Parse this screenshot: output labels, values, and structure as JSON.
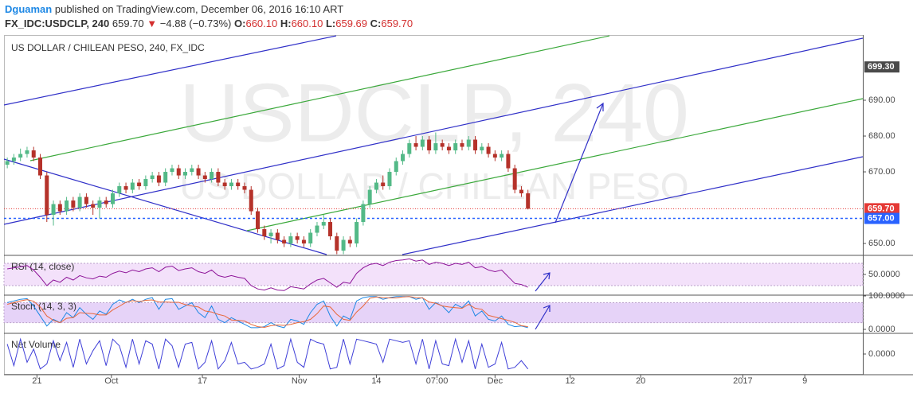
{
  "header": {
    "user": "Dguaman",
    "published": "published on TradingView.com, December 06, 2016 16:10 ART",
    "symbol": "FX_IDC:USDCLP, 240",
    "last": "659.70",
    "arrow": "▼",
    "change": "−4.88 (−0.73%)",
    "o_label": "O:",
    "o": "660.10",
    "h_label": "H:",
    "h": "660.10",
    "l_label": "L:",
    "l": "659.69",
    "c_label": "C:",
    "c": "659.70"
  },
  "chart_data": [
    {
      "type": "candlestick",
      "title": "US DOLLAR / CHILEAN PESO, 240, FX_IDC",
      "watermark": "USDCLP, 240",
      "watermark_sub": "US DOLLAR / CHILEAN PESO",
      "up_color": "#53b987",
      "down_color": "#b5322a",
      "open": [
        672,
        673,
        674,
        675,
        676,
        674,
        669,
        658,
        661,
        659,
        662,
        660,
        663,
        661,
        660,
        662,
        661,
        664,
        666,
        665,
        667,
        666,
        668,
        669,
        667,
        670,
        671,
        669,
        670,
        671,
        669,
        668,
        670,
        667,
        666,
        667,
        666,
        665,
        659,
        654,
        652,
        653,
        651,
        650,
        652,
        651,
        650,
        653,
        655,
        656,
        652,
        648,
        651,
        650,
        656,
        661,
        665,
        667,
        666,
        670,
        673,
        675,
        678,
        677,
        679,
        676,
        678,
        677,
        676,
        678,
        677,
        679,
        676,
        677,
        675,
        674,
        675,
        671,
        665,
        664
      ],
      "high": [
        674,
        675,
        676.5,
        677,
        677,
        675,
        670,
        662,
        662,
        663,
        663,
        664,
        664,
        662,
        663,
        663,
        665,
        667,
        667,
        668,
        668,
        669,
        670,
        670,
        671,
        672,
        672,
        671,
        672,
        672,
        670,
        671,
        671,
        668,
        668,
        668,
        667,
        666,
        660,
        655,
        654,
        654,
        652,
        653,
        653,
        652,
        654,
        656,
        658,
        657,
        653,
        652,
        652,
        657,
        662,
        666,
        668,
        669,
        671,
        674,
        676,
        679,
        680,
        680,
        680,
        681,
        679,
        678,
        679,
        679,
        680,
        680,
        678,
        678,
        676,
        676,
        676,
        672,
        666,
        665
      ],
      "low": [
        671,
        672,
        673,
        674,
        673,
        668,
        656,
        655,
        658,
        658,
        659,
        659,
        660,
        658,
        657,
        660,
        660,
        663,
        664,
        664,
        665,
        665,
        667,
        666,
        666,
        669,
        668,
        668,
        669,
        668,
        667,
        667,
        666,
        665,
        665,
        665,
        664,
        658,
        653,
        651,
        650,
        650,
        649,
        649,
        650,
        649,
        649,
        652,
        654,
        651,
        647,
        647,
        649,
        649,
        655,
        660,
        664,
        665,
        665,
        669,
        672,
        674,
        676,
        676,
        675,
        675,
        676,
        675,
        675,
        676,
        676,
        675,
        675,
        674,
        673,
        673,
        670,
        664,
        663,
        659.5
      ],
      "close": [
        673,
        674,
        675,
        676,
        674,
        669,
        658,
        661,
        659,
        662,
        660,
        663,
        661,
        660,
        662,
        661,
        664,
        666,
        665,
        667,
        666,
        668,
        669,
        667,
        670,
        671,
        669,
        670,
        671,
        669,
        668,
        670,
        667,
        666,
        667,
        666,
        665,
        659,
        654,
        652,
        653,
        651,
        650,
        652,
        651,
        650,
        653,
        655,
        656,
        652,
        648,
        651,
        650,
        656,
        661,
        665,
        667,
        666,
        670,
        673,
        675,
        678,
        677,
        679,
        676,
        678,
        677,
        676,
        678,
        677,
        679,
        676,
        677,
        675,
        674,
        675,
        671,
        665,
        664,
        659.7
      ],
      "ylim": [
        646.9,
        708
      ],
      "yticks": [
        {
          "value": 650,
          "label": "650.00"
        },
        {
          "value": 670,
          "label": "670.00"
        },
        {
          "value": 680,
          "label": "680.00"
        },
        {
          "value": 690,
          "label": "690.00"
        }
      ],
      "price_tags": [
        {
          "value": 699.3,
          "label": "699.30",
          "color": "#4a4a4a"
        },
        {
          "value": 659.7,
          "label": "659.70",
          "color": "#e53935"
        },
        {
          "value": 657,
          "label": "657.00",
          "color": "#2962ff"
        }
      ],
      "xlim": [
        -0.5,
        129.8
      ],
      "xticks": [
        {
          "value": 4.5,
          "label": "21"
        },
        {
          "value": 15.8,
          "label": "Oct"
        },
        {
          "value": 29.6,
          "label": "17"
        },
        {
          "value": 44.3,
          "label": "Nov"
        },
        {
          "value": 56.0,
          "label": "14"
        },
        {
          "value": 65.2,
          "label": "07:00"
        },
        {
          "value": 74.0,
          "label": "Dec"
        },
        {
          "value": 85.4,
          "label": "12"
        },
        {
          "value": 96.1,
          "label": "20"
        },
        {
          "value": 111.6,
          "label": "2017"
        },
        {
          "value": 121.0,
          "label": "9"
        }
      ]
    },
    {
      "type": "line",
      "title": "RSI (14, close)",
      "band": [
        30,
        70
      ],
      "band_color": "#f3e1fa",
      "ylim": [
        14.3,
        82.9
      ],
      "yticks": [
        {
          "value": 50,
          "label": "50.0000"
        }
      ],
      "series": [
        {
          "color": "#8e1599",
          "values": [
            60,
            62,
            64,
            66,
            58,
            45,
            30,
            40,
            36,
            45,
            40,
            48,
            44,
            42,
            47,
            45,
            52,
            56,
            53,
            58,
            55,
            60,
            62,
            55,
            63,
            65,
            57,
            60,
            62,
            55,
            52,
            58,
            48,
            45,
            48,
            45,
            43,
            30,
            24,
            22,
            26,
            22,
            21,
            28,
            26,
            24,
            33,
            40,
            43,
            35,
            27,
            36,
            34,
            52,
            62,
            68,
            70,
            66,
            72,
            75,
            76,
            78,
            74,
            76,
            68,
            72,
            70,
            66,
            70,
            68,
            72,
            62,
            64,
            58,
            55,
            58,
            46,
            34,
            32,
            27
          ]
        }
      ]
    },
    {
      "type": "line",
      "title": "Stoch (14, 3, 3)",
      "band": [
        20,
        80
      ],
      "band_color": "#e6d3f8",
      "ylim": [
        -9.5,
        100
      ],
      "yticks": [
        {
          "value": 0,
          "label": "0.0000"
        },
        {
          "value": 100,
          "label": "100.0000"
        }
      ],
      "series": [
        {
          "color": "#1e88e5",
          "values": [
            80,
            85,
            90,
            92,
            70,
            40,
            10,
            30,
            20,
            50,
            35,
            65,
            45,
            30,
            55,
            45,
            75,
            88,
            80,
            90,
            80,
            90,
            95,
            60,
            90,
            92,
            60,
            70,
            80,
            50,
            35,
            70,
            30,
            20,
            35,
            25,
            15,
            5,
            5,
            8,
            20,
            10,
            5,
            30,
            25,
            15,
            50,
            75,
            85,
            40,
            10,
            40,
            30,
            85,
            95,
            98,
            98,
            90,
            95,
            98,
            98,
            98,
            90,
            95,
            60,
            80,
            70,
            50,
            75,
            65,
            85,
            40,
            55,
            30,
            25,
            40,
            15,
            8,
            10,
            5
          ]
        },
        {
          "color": "#e8683a",
          "values": [
            75,
            80,
            85,
            89,
            84,
            67,
            40,
            27,
            20,
            33,
            35,
            50,
            48,
            47,
            43,
            43,
            58,
            69,
            81,
            86,
            83,
            87,
            88,
            82,
            82,
            81,
            81,
            74,
            70,
            67,
            55,
            52,
            45,
            40,
            28,
            27,
            25,
            15,
            8,
            6,
            11,
            13,
            12,
            15,
            20,
            23,
            30,
            47,
            70,
            67,
            45,
            30,
            27,
            52,
            70,
            93,
            97,
            95,
            94,
            94,
            97,
            98,
            95,
            94,
            82,
            78,
            70,
            67,
            65,
            63,
            75,
            63,
            60,
            42,
            37,
            32,
            27,
            21,
            11,
            8
          ]
        }
      ]
    },
    {
      "type": "line",
      "title": "Net Volume",
      "ylim": [
        -1.2,
        1.2
      ],
      "yticks": [
        {
          "value": 0,
          "label": "0.0000"
        }
      ],
      "series": [
        {
          "color": "#3f3fd8",
          "values": [
            0.6,
            -0.7,
            0.9,
            -0.5,
            0.3,
            -0.9,
            -0.6,
            0.8,
            -0.4,
            0.7,
            -0.8,
            0.9,
            -0.6,
            0.2,
            0.8,
            -0.7,
            0.9,
            0.5,
            -0.8,
            0.9,
            -0.6,
            0.8,
            0.6,
            -0.9,
            0.9,
            0.5,
            -0.8,
            0.6,
            0.7,
            -0.9,
            -0.5,
            0.8,
            -0.9,
            -0.4,
            0.7,
            -0.6,
            -0.5,
            -0.9,
            -0.8,
            -0.6,
            0.6,
            -0.9,
            -0.7,
            0.9,
            -0.5,
            -0.8,
            0.9,
            0.7,
            0.6,
            -0.9,
            -0.8,
            0.9,
            -0.6,
            0.9,
            0.8,
            0.7,
            0.6,
            -0.5,
            0.9,
            0.8,
            0.7,
            0.8,
            -0.6,
            0.9,
            -0.9,
            0.8,
            -0.6,
            -0.7,
            0.9,
            -0.5,
            0.8,
            -0.9,
            0.6,
            -0.8,
            -0.6,
            0.7,
            -0.9,
            -0.8,
            -0.4,
            -0.9
          ]
        }
      ]
    }
  ]
}
